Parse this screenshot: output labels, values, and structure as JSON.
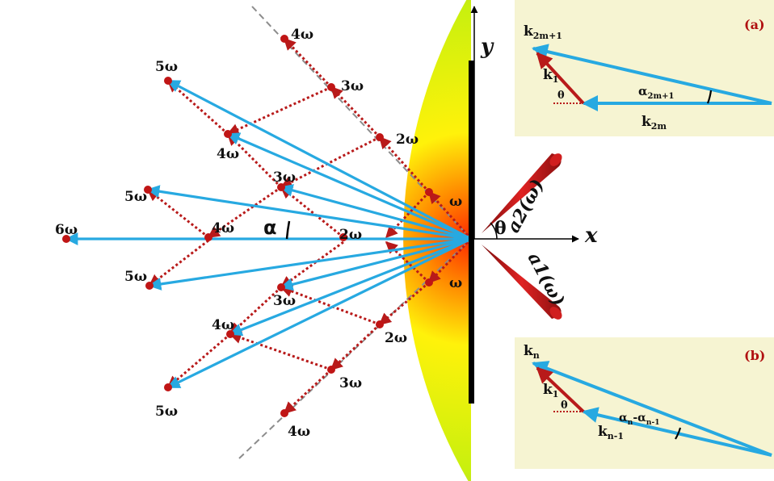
{
  "colors": {
    "blue": "#27a9e1",
    "red": "#b81a1a",
    "dot": "#c01515",
    "dashed_gray": "#8c8c8c",
    "inset_bg": "#f6f4d2",
    "gradient_center": "#ff3b00",
    "gradient_mid": "#f2f40c",
    "gradient_outer": "#8a6cf0",
    "gradient_edge": "#7a1bff"
  },
  "axes": {
    "x_label": "x",
    "y_label": "y",
    "theta_label": "θ",
    "alpha_label": "α"
  },
  "beams": {
    "upper": "a2(ω)",
    "lower": "a1(ω)"
  },
  "harmonic_labels": {
    "omega_top": "ω",
    "omega_bottom": "ω",
    "top_2": "2ω",
    "top_3": "3ω",
    "top_4": "4ω",
    "up_3": "3ω",
    "up_4": "4ω",
    "up_5": "5ω",
    "mid_5_up": "5ω",
    "center_4": "4ω",
    "center_2": "2ω",
    "center_6": "6ω",
    "mid_5_down": "5ω",
    "down_3": "3ω",
    "down_4": "4ω",
    "down_5": "5ω",
    "bot_2": "2ω",
    "bot_3": "3ω",
    "bot_4": "4ω"
  },
  "inset_a": {
    "tag": "(a)",
    "k_top": "k2m+1",
    "k_mid": "k1",
    "k_bottom": "k2m",
    "alpha": "α2m+1",
    "theta": "θ"
  },
  "inset_b": {
    "tag": "(b)",
    "k_top": "kn",
    "k_mid": "k1",
    "k_bottom": "kn-1",
    "alpha": "αn-αn-1",
    "theta": "θ"
  }
}
